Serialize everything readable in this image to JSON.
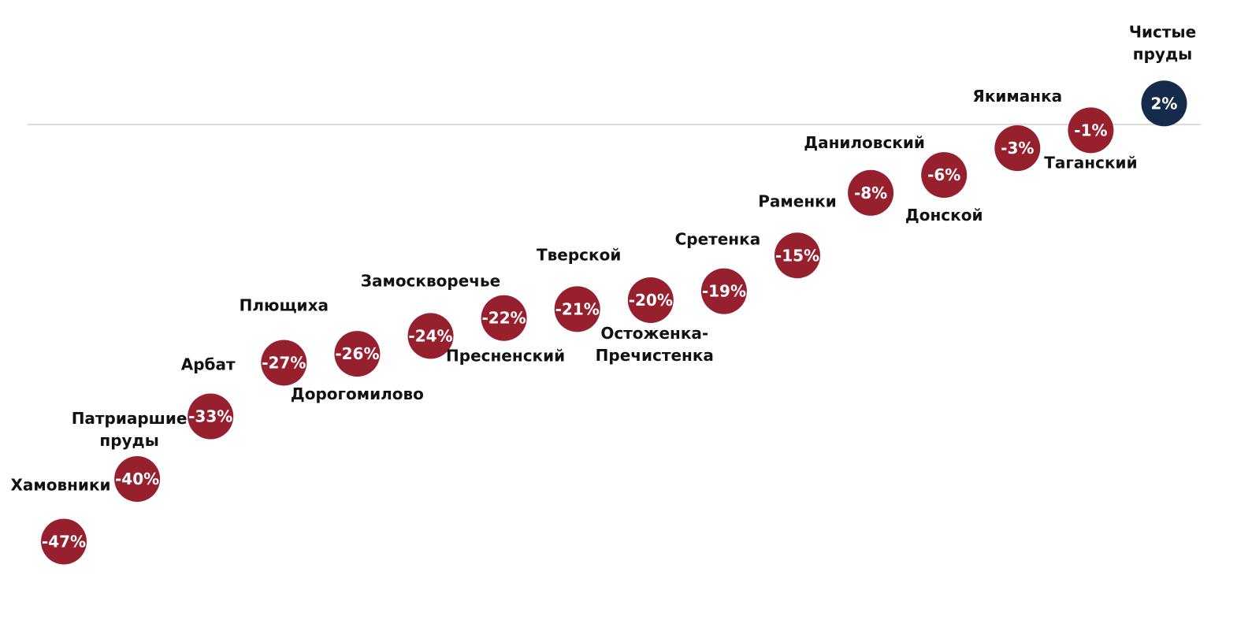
{
  "colors": {
    "negative": "#97202e",
    "positive": "#162a4c",
    "baseline": "#cfcfcf",
    "value_text": "#ffffff",
    "name_text": "#111111"
  },
  "chart_data": {
    "type": "scatter",
    "baseline_value": 0,
    "value_format": "percent",
    "points": [
      {
        "name": "Хамовники",
        "value": -47
      },
      {
        "name": "Патриаршие пруды",
        "value": -40
      },
      {
        "name": "Арбат",
        "value": -33
      },
      {
        "name": "Плющиха",
        "value": -27
      },
      {
        "name": "Дорогомилово",
        "value": -26
      },
      {
        "name": "Замоскворечье",
        "value": -24
      },
      {
        "name": "Пресненский",
        "value": -22
      },
      {
        "name": "Тверской",
        "value": -21
      },
      {
        "name": "Остоженка-Пречистенка",
        "value": -20
      },
      {
        "name": "Сретенка",
        "value": -19
      },
      {
        "name": "Раменки",
        "value": -15
      },
      {
        "name": "Даниловский",
        "value": -8
      },
      {
        "name": "Донской",
        "value": -6
      },
      {
        "name": "Якиманка",
        "value": -3
      },
      {
        "name": "Таганский",
        "value": -1
      },
      {
        "name": "Чистые пруды",
        "value": 2
      }
    ]
  }
}
